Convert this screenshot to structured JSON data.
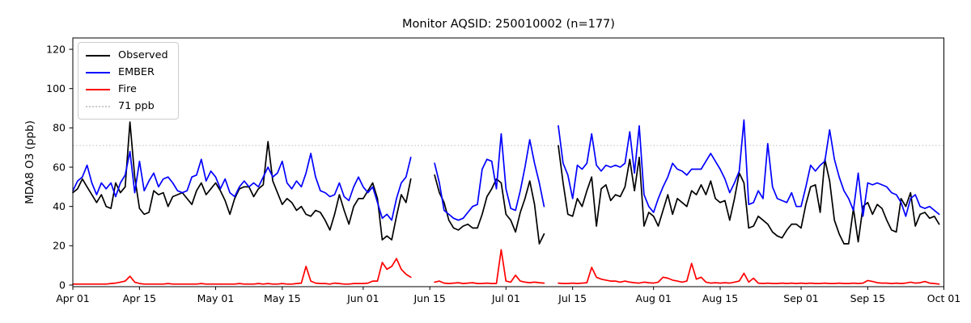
{
  "title": "Monitor AQSID: 250010002 (n=177)",
  "ylabel": "MDA8 O3 (ppb)",
  "legend": {
    "items": [
      {
        "label": "Observed",
        "color": "#000000",
        "style": "solid"
      },
      {
        "label": "EMBER",
        "color": "#0000ff",
        "style": "solid"
      },
      {
        "label": "Fire",
        "color": "#ff0000",
        "style": "solid"
      },
      {
        "label": "71 ppb",
        "color": "#c9c9c9",
        "style": "dotted"
      }
    ]
  },
  "chart_data": {
    "type": "line",
    "x_unit": "days since Apr 01",
    "xlim_days": [
      0,
      183
    ],
    "ylim": [
      -2,
      126
    ],
    "grid": false,
    "legend_position": "upper left",
    "yticks": [
      0,
      20,
      40,
      60,
      80,
      100,
      120
    ],
    "xticks": [
      {
        "label": "Apr 01",
        "day": 0
      },
      {
        "label": "Apr 15",
        "day": 14
      },
      {
        "label": "May 01",
        "day": 30
      },
      {
        "label": "May 15",
        "day": 44
      },
      {
        "label": "Jun 01",
        "day": 61
      },
      {
        "label": "Jun 15",
        "day": 75
      },
      {
        "label": "Jul 01",
        "day": 91
      },
      {
        "label": "Jul 15",
        "day": 105
      },
      {
        "label": "Aug 01",
        "day": 122
      },
      {
        "label": "Aug 15",
        "day": 136
      },
      {
        "label": "Sep 01",
        "day": 153
      },
      {
        "label": "Sep 15",
        "day": 167
      },
      {
        "label": "Oct 01",
        "day": 183
      }
    ],
    "threshold": {
      "value": 71,
      "label": "71 ppb",
      "color": "#c9c9c9",
      "style": "dotted"
    },
    "series": [
      {
        "name": "Observed",
        "color": "#000000",
        "style": "solid",
        "values": [
          47,
          49,
          54,
          50,
          46,
          42,
          46,
          40,
          39,
          52,
          47,
          50,
          83,
          55,
          39,
          36,
          37,
          48,
          46,
          47,
          40,
          45,
          46,
          47,
          44,
          41,
          48,
          52,
          46,
          49,
          52,
          48,
          43,
          36,
          44,
          49,
          50,
          50,
          45,
          49,
          51,
          73,
          53,
          47,
          41,
          44,
          42,
          38,
          40,
          36,
          35,
          38,
          37,
          33,
          28,
          36,
          46,
          38,
          31,
          40,
          44,
          44,
          48,
          52,
          44,
          23,
          25,
          23,
          35,
          46,
          42,
          54,
          null,
          null,
          null,
          null,
          56,
          47,
          42,
          33,
          29,
          28,
          30,
          31,
          29,
          29,
          36,
          45,
          49,
          54,
          52,
          36,
          33,
          27,
          37,
          44,
          53,
          41,
          21,
          26,
          null,
          null,
          71,
          52,
          36,
          35,
          44,
          40,
          48,
          55,
          30,
          49,
          51,
          43,
          46,
          45,
          50,
          64,
          48,
          65,
          30,
          37,
          35,
          30,
          38,
          46,
          36,
          44,
          42,
          40,
          48,
          46,
          51,
          46,
          53,
          44,
          42,
          43,
          33,
          44,
          57,
          52,
          29,
          30,
          35,
          33,
          31,
          27,
          25,
          24,
          28,
          31,
          31,
          29,
          41,
          50,
          51,
          37,
          64,
          53,
          33,
          26,
          21,
          21,
          39,
          22,
          40,
          42,
          36,
          41,
          39,
          33,
          28,
          27,
          44,
          40,
          47,
          30,
          36,
          37,
          34,
          35,
          31
        ]
      },
      {
        "name": "EMBER",
        "color": "#0000ff",
        "style": "solid",
        "values": [
          48,
          53,
          55,
          61,
          52,
          46,
          52,
          49,
          52,
          45,
          52,
          56,
          68,
          47,
          63,
          48,
          53,
          57,
          50,
          54,
          55,
          52,
          48,
          47,
          48,
          55,
          56,
          64,
          53,
          58,
          55,
          49,
          54,
          47,
          45,
          50,
          53,
          50,
          52,
          50,
          55,
          60,
          55,
          57,
          63,
          52,
          49,
          53,
          50,
          57,
          67,
          55,
          48,
          47,
          45,
          46,
          52,
          45,
          43,
          50,
          55,
          50,
          47,
          50,
          42,
          34,
          36,
          33,
          44,
          52,
          55,
          65,
          null,
          null,
          null,
          null,
          62,
          52,
          38,
          36,
          34,
          33,
          34,
          37,
          40,
          41,
          59,
          64,
          63,
          49,
          77,
          49,
          39,
          38,
          48,
          60,
          74,
          62,
          52,
          40,
          null,
          null,
          81,
          62,
          56,
          44,
          61,
          59,
          62,
          77,
          61,
          58,
          61,
          60,
          61,
          60,
          62,
          78,
          57,
          81,
          46,
          40,
          37,
          44,
          50,
          55,
          62,
          59,
          58,
          56,
          59,
          59,
          59,
          63,
          67,
          63,
          59,
          54,
          47,
          52,
          58,
          84,
          41,
          42,
          48,
          44,
          72,
          50,
          44,
          43,
          42,
          47,
          40,
          40,
          50,
          61,
          58,
          61,
          63,
          79,
          64,
          55,
          48,
          44,
          38,
          57,
          35,
          52,
          51,
          52,
          51,
          50,
          47,
          46,
          42,
          35,
          44,
          46,
          40,
          39,
          40,
          38,
          36
        ]
      },
      {
        "name": "Fire",
        "color": "#ff0000",
        "style": "solid",
        "values": [
          0.5,
          0.5,
          0.5,
          0.5,
          0.5,
          0.5,
          0.5,
          0.5,
          0.8,
          1,
          1.5,
          2,
          4.5,
          1.5,
          0.8,
          0.5,
          0.5,
          0.5,
          0.5,
          0.5,
          0.8,
          0.5,
          0.5,
          0.5,
          0.5,
          0.5,
          0.5,
          0.8,
          0.5,
          0.5,
          0.5,
          0.5,
          0.5,
          0.5,
          0.5,
          0.8,
          0.5,
          0.5,
          0.5,
          0.8,
          0.5,
          0.8,
          0.5,
          0.5,
          0.8,
          0.5,
          0.5,
          0.8,
          1,
          9.5,
          2,
          1,
          0.8,
          0.8,
          0.5,
          1,
          0.8,
          0.5,
          0.5,
          0.8,
          0.8,
          0.8,
          1,
          2,
          2,
          11.5,
          8,
          9.5,
          13.5,
          8,
          5.5,
          4,
          null,
          null,
          null,
          null,
          1.5,
          2,
          1,
          0.8,
          1,
          1.2,
          0.8,
          1,
          1.2,
          0.8,
          0.8,
          1,
          0.8,
          0.8,
          18,
          2,
          1.5,
          5,
          2,
          1.5,
          1.2,
          1.5,
          1.2,
          1,
          null,
          null,
          1,
          0.8,
          0.8,
          1,
          0.8,
          1,
          1.2,
          9,
          4,
          3,
          2.5,
          2,
          2,
          1.5,
          2,
          1.5,
          1.2,
          1,
          1.5,
          1.2,
          1,
          1.5,
          4,
          3.5,
          2.5,
          2,
          1.5,
          2,
          11,
          3,
          4,
          1.5,
          1,
          1.2,
          1,
          1.2,
          1,
          1.5,
          2,
          6,
          1.5,
          3.5,
          1,
          0.8,
          1,
          0.8,
          0.8,
          1,
          0.8,
          1,
          0.8,
          1,
          0.8,
          1,
          0.8,
          0.8,
          1,
          0.8,
          0.8,
          1,
          0.8,
          0.8,
          1,
          0.8,
          1,
          2.3,
          1.8,
          1.2,
          1,
          1,
          0.8,
          1,
          0.8,
          1,
          1.5,
          1,
          1.2,
          1.8,
          1,
          0.8,
          0.5
        ]
      }
    ]
  }
}
